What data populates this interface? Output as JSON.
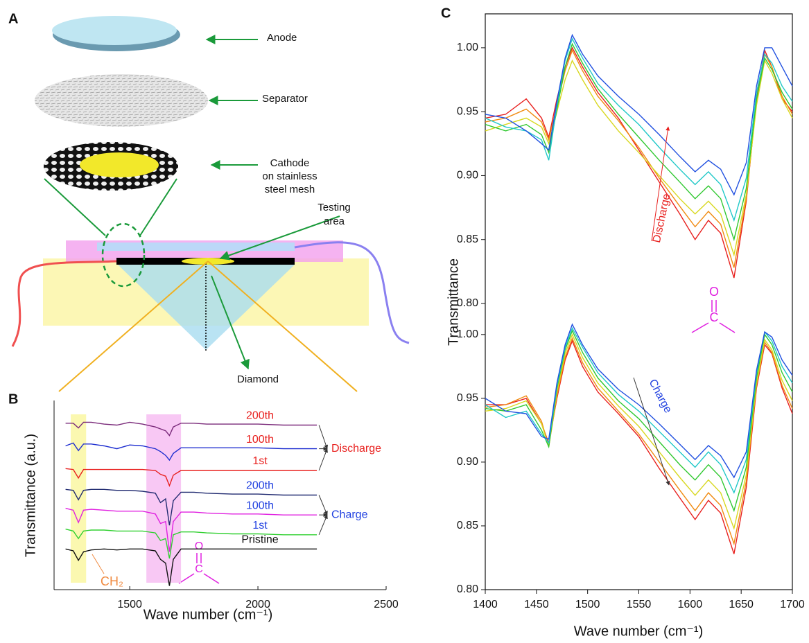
{
  "panel_labels": [
    "A",
    "B",
    "C"
  ],
  "diagram": {
    "anode": "Anode",
    "separator": "Separator",
    "cathode": [
      "Cathode",
      "on stainless",
      "steel mesh"
    ],
    "testing_area": [
      "Testing",
      "area"
    ],
    "diamond": "Diamond"
  },
  "chart_data": [
    {
      "type": "line",
      "ylabel": "Transmittance (a.u.)",
      "xlabel": "Wave number (cm⁻¹)",
      "xlim": [
        1205,
        2500
      ],
      "xticks": [
        1500,
        2000,
        2500
      ],
      "ylim": [
        0,
        10
      ],
      "highlights": [
        {
          "xrange": [
            1270,
            1330
          ],
          "color": "#fbf8b0"
        },
        {
          "xrange": [
            1565,
            1700
          ],
          "color": "#f8c8f4"
        }
      ],
      "annotation": "CH₂",
      "carbonyl": [
        "O",
        "C"
      ],
      "groups": [
        {
          "label": "Discharge",
          "color": "#e8201e"
        },
        {
          "label": "Charge",
          "color": "#2040e0"
        }
      ],
      "x": [
        1250,
        1280,
        1300,
        1320,
        1350,
        1400,
        1450,
        1500,
        1550,
        1600,
        1620,
        1640,
        1655,
        1670,
        1700,
        1750,
        1800,
        1900,
        2000,
        2100,
        2230
      ],
      "series": [
        {
          "name": "200th",
          "color": "#7a2a7a",
          "label_color": "#e8201e",
          "values": [
            8.8,
            8.8,
            8.55,
            8.85,
            8.85,
            8.75,
            8.7,
            8.85,
            8.75,
            8.6,
            8.5,
            8.4,
            8.15,
            8.6,
            8.8,
            8.8,
            8.75,
            8.75,
            8.75,
            8.7,
            8.7
          ]
        },
        {
          "name": "100th",
          "color": "#1f2fd0",
          "label_color": "#e8201e",
          "values": [
            7.6,
            7.75,
            7.35,
            7.7,
            7.7,
            7.6,
            7.45,
            7.65,
            7.6,
            7.45,
            7.3,
            7.1,
            6.85,
            7.2,
            7.5,
            7.5,
            7.5,
            7.5,
            7.5,
            7.45,
            7.45
          ]
        },
        {
          "name": "1st",
          "color": "#e8201e",
          "label_color": "#e8201e",
          "values": [
            6.4,
            6.35,
            5.9,
            6.35,
            6.35,
            6.35,
            6.35,
            6.35,
            6.35,
            6.3,
            6.1,
            6.0,
            5.5,
            6.05,
            6.3,
            6.3,
            6.3,
            6.3,
            6.3,
            6.3,
            6.3
          ]
        },
        {
          "name": "200th",
          "color": "#202a70",
          "label_color": "#2040e0",
          "values": [
            5.3,
            5.25,
            4.75,
            5.25,
            5.3,
            5.3,
            5.25,
            5.25,
            5.2,
            5.1,
            4.6,
            4.8,
            3.4,
            4.7,
            5.15,
            5.15,
            5.1,
            5.05,
            5.05,
            5.0,
            5.0
          ]
        },
        {
          "name": "100th",
          "color": "#e020e0",
          "label_color": "#2040e0",
          "values": [
            4.3,
            4.2,
            3.55,
            4.2,
            4.25,
            4.2,
            4.15,
            4.15,
            4.15,
            4.0,
            3.5,
            3.6,
            2.0,
            3.6,
            4.1,
            4.1,
            4.05,
            4.0,
            4.0,
            3.95,
            3.95
          ]
        },
        {
          "name": "1st",
          "color": "#30d030",
          "label_color": "#2040e0",
          "values": [
            3.2,
            3.1,
            2.7,
            3.1,
            3.15,
            3.15,
            3.1,
            3.1,
            3.1,
            3.0,
            2.6,
            2.7,
            1.65,
            2.9,
            3.05,
            3.05,
            3.0,
            2.95,
            2.95,
            2.9,
            2.9
          ]
        },
        {
          "name": "Pristine",
          "color": "#111111",
          "label_color": "#111111",
          "values": [
            2.15,
            2.05,
            1.55,
            2.0,
            2.1,
            2.15,
            2.1,
            2.15,
            2.15,
            2.05,
            1.6,
            1.4,
            0.2,
            1.6,
            2.15,
            2.15,
            2.15,
            2.15,
            2.15,
            2.15,
            2.15
          ]
        }
      ]
    },
    {
      "type": "line",
      "ylabel": "Transmittance",
      "xlim": [
        1400,
        1700
      ],
      "ylim": [
        0.8,
        1.0265
      ],
      "yticks": [
        {
          "value": 0.8,
          "label": "0.80"
        },
        {
          "value": 0.85,
          "label": "0.85"
        },
        {
          "value": 0.9,
          "label": "0.90"
        },
        {
          "value": 0.95,
          "label": "0.95"
        },
        {
          "value": 1.0,
          "label": "1.00"
        }
      ],
      "annotation": "Discharge",
      "annotation_color": "#e8201e",
      "carbonyl": [
        "O",
        "C"
      ],
      "x": [
        1400,
        1420,
        1440,
        1455,
        1462,
        1470,
        1478,
        1485,
        1495,
        1510,
        1530,
        1550,
        1570,
        1590,
        1605,
        1618,
        1630,
        1643,
        1655,
        1665,
        1673,
        1680,
        1690,
        1700
      ],
      "series": [
        {
          "color": "#e8201e",
          "values": [
            0.945,
            0.948,
            0.96,
            0.945,
            0.93,
            0.96,
            0.985,
            1.0,
            0.985,
            0.965,
            0.945,
            0.92,
            0.895,
            0.87,
            0.85,
            0.865,
            0.855,
            0.82,
            0.88,
            0.96,
            0.998,
            0.985,
            0.96,
            0.95
          ]
        },
        {
          "color": "#f08a10",
          "values": [
            0.942,
            0.945,
            0.952,
            0.942,
            0.928,
            0.955,
            0.982,
            0.998,
            0.982,
            0.962,
            0.943,
            0.922,
            0.898,
            0.876,
            0.86,
            0.872,
            0.862,
            0.828,
            0.882,
            0.958,
            0.995,
            0.985,
            0.962,
            0.948
          ]
        },
        {
          "color": "#d8d820",
          "values": [
            0.935,
            0.94,
            0.945,
            0.938,
            0.925,
            0.95,
            0.975,
            0.99,
            0.975,
            0.955,
            0.935,
            0.918,
            0.9,
            0.882,
            0.87,
            0.88,
            0.87,
            0.838,
            0.885,
            0.955,
            0.99,
            0.98,
            0.96,
            0.945
          ]
        },
        {
          "color": "#30c830",
          "values": [
            0.94,
            0.935,
            0.94,
            0.932,
            0.918,
            0.952,
            0.985,
            1.003,
            0.988,
            0.968,
            0.948,
            0.93,
            0.912,
            0.895,
            0.882,
            0.892,
            0.882,
            0.85,
            0.89,
            0.96,
            0.992,
            0.983,
            0.965,
            0.952
          ]
        },
        {
          "color": "#20c8c8",
          "values": [
            0.945,
            0.938,
            0.935,
            0.928,
            0.912,
            0.955,
            0.99,
            1.007,
            0.992,
            0.972,
            0.955,
            0.94,
            0.922,
            0.905,
            0.893,
            0.903,
            0.893,
            0.865,
            0.898,
            0.965,
            0.995,
            0.988,
            0.97,
            0.958
          ]
        },
        {
          "color": "#2050e0",
          "values": [
            0.948,
            0.945,
            0.935,
            0.925,
            0.92,
            0.958,
            0.992,
            1.01,
            0.995,
            0.978,
            0.962,
            0.948,
            0.932,
            0.915,
            0.903,
            0.912,
            0.905,
            0.885,
            0.91,
            0.97,
            1.0,
            1.0,
            0.985,
            0.97
          ]
        }
      ]
    },
    {
      "type": "line",
      "xlabel": "Wave number (cm⁻¹)",
      "xlim": [
        1400,
        1700
      ],
      "xticks": [
        1400,
        1450,
        1500,
        1550,
        1600,
        1650,
        1700
      ],
      "ylim": [
        0.8,
        1.02
      ],
      "yticks": [
        {
          "value": 0.8,
          "label": "0.80"
        },
        {
          "value": 0.85,
          "label": "0.85"
        },
        {
          "value": 0.9,
          "label": "0.90"
        },
        {
          "value": 0.95,
          "label": "0.95"
        },
        {
          "value": 1.0,
          "label": "1.00"
        }
      ],
      "annotation": "Charge",
      "annotation_color": "#2040e0",
      "x": [
        1400,
        1420,
        1440,
        1455,
        1462,
        1470,
        1478,
        1485,
        1495,
        1510,
        1530,
        1550,
        1570,
        1590,
        1605,
        1618,
        1630,
        1643,
        1655,
        1665,
        1673,
        1680,
        1690,
        1700
      ],
      "series": [
        {
          "color": "#e8201e",
          "values": [
            0.945,
            0.945,
            0.95,
            0.93,
            0.915,
            0.95,
            0.98,
            0.995,
            0.975,
            0.955,
            0.938,
            0.92,
            0.895,
            0.872,
            0.855,
            0.87,
            0.86,
            0.828,
            0.88,
            0.958,
            0.992,
            0.985,
            0.958,
            0.938
          ]
        },
        {
          "color": "#f08a10",
          "values": [
            0.943,
            0.945,
            0.952,
            0.932,
            0.912,
            0.952,
            0.982,
            0.997,
            0.978,
            0.958,
            0.94,
            0.922,
            0.9,
            0.878,
            0.862,
            0.876,
            0.866,
            0.836,
            0.885,
            0.96,
            0.994,
            0.986,
            0.96,
            0.942
          ]
        },
        {
          "color": "#d8d820",
          "values": [
            0.94,
            0.942,
            0.948,
            0.93,
            0.912,
            0.955,
            0.985,
            1.0,
            0.982,
            0.962,
            0.944,
            0.928,
            0.908,
            0.888,
            0.874,
            0.886,
            0.876,
            0.848,
            0.89,
            0.962,
            0.996,
            0.988,
            0.964,
            0.948
          ]
        },
        {
          "color": "#30c830",
          "values": [
            0.942,
            0.94,
            0.945,
            0.925,
            0.912,
            0.958,
            0.988,
            1.003,
            0.986,
            0.966,
            0.948,
            0.934,
            0.916,
            0.898,
            0.886,
            0.898,
            0.888,
            0.862,
            0.896,
            0.966,
            1.0,
            0.992,
            0.97,
            0.955
          ]
        },
        {
          "color": "#20c8c8",
          "values": [
            0.945,
            0.935,
            0.94,
            0.922,
            0.915,
            0.96,
            0.99,
            1.005,
            0.99,
            0.97,
            0.953,
            0.94,
            0.924,
            0.908,
            0.896,
            0.908,
            0.898,
            0.876,
            0.902,
            0.97,
            1.002,
            0.995,
            0.975,
            0.962
          ]
        },
        {
          "color": "#2050e0",
          "values": [
            0.95,
            0.94,
            0.938,
            0.92,
            0.918,
            0.962,
            0.992,
            1.008,
            0.992,
            0.973,
            0.957,
            0.945,
            0.93,
            0.914,
            0.902,
            0.913,
            0.905,
            0.888,
            0.908,
            0.972,
            1.002,
            0.998,
            0.98,
            0.968
          ]
        }
      ]
    }
  ]
}
